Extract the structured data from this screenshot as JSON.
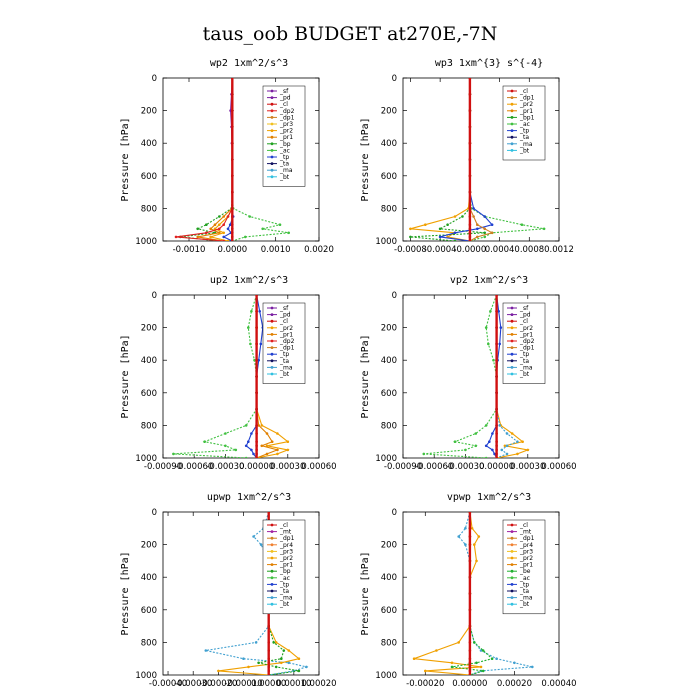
{
  "figure_title": "taus_oob  BUDGET at270E,-7N",
  "colors": {
    "sf": "#7a1fa2",
    "pd": "#7a1fa2",
    "cl": "#d01010",
    "dp2": "#e02020",
    "dp1": "#d08020",
    "pr3": "#f0c020",
    "pr2": "#f0a000",
    "pr1": "#e08000",
    "bp": "#20a020",
    "ac": "#40c040",
    "tp": "#2040d0",
    "ta": "#101060",
    "ma": "#40a0d0",
    "bt": "#30c0e0",
    "mt": "#a020a0",
    "pr4": "#f08030",
    "be": "#20b030"
  },
  "chart_data": [
    {
      "type": "line",
      "title": "wp2  1xm^2/s^3",
      "ylabel": "Pressure [hPa]",
      "xlim": [
        -0.0016,
        0.002
      ],
      "ylim": [
        1000,
        0
      ],
      "xticks": [
        -0.001,
        0.0,
        0.001,
        0.002
      ],
      "xtick_labels": [
        "-0.0010",
        "0.0000",
        "0.0010",
        "0.0020"
      ],
      "yticks": [
        0,
        200,
        400,
        600,
        800,
        1000
      ],
      "ytick_labels": [
        "0",
        "200",
        "400",
        "600",
        "800",
        "1000"
      ],
      "legend": [
        "_sf",
        "_pd",
        "_cl",
        "_dp2",
        "_dp1",
        "_pr3",
        "_pr2",
        "_pr1",
        "_bp",
        "_ac",
        "_tp",
        "_ta",
        "_ma",
        "_bt"
      ],
      "legend_location": "upper-right",
      "pressure": [
        0,
        100,
        200,
        300,
        400,
        500,
        600,
        700,
        800,
        850,
        900,
        925,
        950,
        975,
        1000
      ],
      "series": [
        {
          "name": "_ac",
          "key": "ac",
          "values": [
            0,
            0,
            0,
            0,
            0,
            0,
            0,
            0,
            2e-05,
            0.0004,
            0.0011,
            0.0007,
            0.0013,
            0.0003,
            0
          ]
        },
        {
          "name": "_bp",
          "key": "bp",
          "values": [
            0,
            0,
            0,
            0,
            0,
            0,
            0,
            0,
            -2e-05,
            -0.0003,
            -0.0006,
            -0.0008,
            -0.0004,
            -0.0012,
            -0.0003
          ]
        },
        {
          "name": "_pr1",
          "key": "pr1",
          "values": [
            0,
            0,
            0,
            0,
            0,
            0,
            0,
            0,
            -1e-05,
            -0.0002,
            -0.0004,
            -0.0005,
            -0.0003,
            -0.0008,
            -0.0002
          ]
        },
        {
          "name": "_pr2",
          "key": "pr2",
          "values": [
            0,
            0,
            0,
            0,
            0,
            0,
            0,
            0,
            0,
            -0.0001,
            -0.0003,
            -0.0004,
            -0.0002,
            -0.0005,
            -0.0001
          ]
        },
        {
          "name": "_dp2",
          "key": "dp2",
          "values": [
            0,
            0,
            0,
            0,
            0,
            0,
            0,
            0,
            0,
            -0.0001,
            -0.0002,
            -0.0003,
            -0.0006,
            -0.0013,
            -0.0002
          ]
        },
        {
          "name": "_tp",
          "key": "tp",
          "values": [
            0,
            0,
            0,
            0,
            0,
            0,
            0,
            0,
            0,
            2e-05,
            -5e-05,
            -0.0001,
            -3e-05,
            -0.0002,
            0
          ]
        },
        {
          "name": "_pd",
          "key": "pd",
          "values": [
            0,
            -2e-05,
            -4e-05,
            -2e-05,
            -1e-05,
            0,
            0,
            0,
            0,
            0,
            0,
            0,
            0,
            0,
            0
          ]
        },
        {
          "name": "_cl",
          "key": "cl",
          "values": [
            0,
            0,
            0,
            0,
            0,
            0,
            0,
            0,
            0,
            0,
            0,
            0,
            0,
            0,
            0
          ]
        }
      ]
    },
    {
      "type": "line",
      "title": "wp3  1xm^{3} s^{-4}",
      "ylabel": "Pressure [hPa]",
      "xlim": [
        -0.0009,
        0.0012
      ],
      "ylim": [
        1000,
        0
      ],
      "xticks": [
        -0.0008,
        -0.0004,
        0.0,
        0.0004,
        0.0008,
        0.0012
      ],
      "xtick_labels": [
        "-0.0008",
        "-0.0004",
        "-0.0000",
        "0.0004",
        "0.0008",
        "0.0012"
      ],
      "yticks": [
        0,
        200,
        400,
        600,
        800,
        1000
      ],
      "ytick_labels": [
        "0",
        "200",
        "400",
        "600",
        "800",
        "1000"
      ],
      "legend": [
        "_cl",
        "_dp1",
        "_pr2",
        "_pr1",
        "_bp1",
        "_ac",
        "_tp",
        "_ta",
        "_ma",
        "_bt"
      ],
      "legend_location": "upper-right",
      "pressure": [
        0,
        100,
        200,
        300,
        400,
        500,
        600,
        700,
        800,
        850,
        900,
        925,
        950,
        975,
        1000
      ],
      "series": [
        {
          "name": "_ac",
          "key": "ac",
          "values": [
            0,
            0,
            0,
            0,
            0,
            0,
            0,
            0,
            2e-05,
            0.0002,
            0.0007,
            0.001,
            0.0003,
            0.0002,
            0
          ]
        },
        {
          "name": "_pr2",
          "key": "pr2",
          "values": [
            0,
            0,
            0,
            0,
            0,
            0,
            0,
            0,
            -2e-05,
            -0.0002,
            -0.0006,
            -0.0008,
            -0.0002,
            -0.0003,
            0
          ]
        },
        {
          "name": "_bp1",
          "key": "bp",
          "values": [
            0,
            0,
            0,
            0,
            0,
            0,
            0,
            0,
            0,
            -0.0001,
            -0.0003,
            -0.0004,
            0.0002,
            -0.0008,
            -0.0002
          ]
        },
        {
          "name": "_tp",
          "key": "tp",
          "values": [
            0,
            0,
            0,
            0,
            0,
            0,
            0,
            0,
            5e-05,
            0.0002,
            0.0003,
            0.0001,
            -0.0002,
            -0.0004,
            0
          ]
        },
        {
          "name": "_dp1",
          "key": "dp1",
          "values": [
            0,
            0,
            0,
            0,
            0,
            0,
            0,
            0,
            0,
            5e-05,
            0.0001,
            0.0002,
            0.0003,
            0.0001,
            0
          ]
        },
        {
          "name": "_cl",
          "key": "cl",
          "values": [
            0,
            0,
            0,
            0,
            0,
            0,
            0,
            0,
            0,
            0,
            0,
            0,
            0,
            0,
            0
          ]
        }
      ]
    },
    {
      "type": "line",
      "title": "up2  1xm^2/s^3",
      "ylabel": "Pressure [hPa]",
      "xlim": [
        -0.0009,
        0.0006
      ],
      "ylim": [
        1000,
        0
      ],
      "xticks": [
        -0.0009,
        -0.0006,
        -0.0003,
        0.0,
        0.0003,
        0.0006
      ],
      "xtick_labels": [
        "-0.00090",
        "-0.00060",
        "-0.00030",
        "0.00000",
        "0.00030",
        "0.00060"
      ],
      "yticks": [
        0,
        200,
        400,
        600,
        800,
        1000
      ],
      "ytick_labels": [
        "0",
        "200",
        "400",
        "600",
        "800",
        "1000"
      ],
      "legend": [
        "_sf",
        "_pd",
        "_cl",
        "_pr2",
        "_pr1",
        "_dp2",
        "_dp1",
        "_tp",
        "_ta",
        "_ma",
        "_bt"
      ],
      "legend_location": "upper-right",
      "pressure": [
        0,
        100,
        200,
        300,
        400,
        500,
        600,
        700,
        800,
        850,
        900,
        925,
        950,
        975,
        1000
      ],
      "series": [
        {
          "name": "_dp2",
          "key": "ac",
          "values": [
            0,
            -5e-05,
            -8e-05,
            -6e-05,
            -2e-05,
            0,
            0,
            0,
            -0.0001,
            -0.0003,
            -0.0005,
            -0.0003,
            -0.0002,
            -0.0008,
            -0.0001
          ]
        },
        {
          "name": "_pr2",
          "key": "pr2",
          "values": [
            0,
            0,
            0,
            0,
            0,
            0,
            0,
            0,
            5e-05,
            0.0002,
            0.0003,
            0.0001,
            0.0003,
            0.0002,
            0
          ]
        },
        {
          "name": "_pr1",
          "key": "pr1",
          "values": [
            0,
            0,
            0,
            0,
            0,
            0,
            0,
            0,
            2e-05,
            0.0001,
            0.00015,
            5e-05,
            0.0002,
            0.0001,
            0
          ]
        },
        {
          "name": "_tp",
          "key": "tp",
          "values": [
            0,
            3e-05,
            6e-05,
            4e-05,
            2e-05,
            0,
            0,
            0,
            0,
            -5e-05,
            -8e-05,
            -0.0001,
            -5e-05,
            -3e-05,
            0
          ]
        },
        {
          "name": "_cl",
          "key": "cl",
          "values": [
            0,
            0,
            0,
            0,
            0,
            0,
            0,
            0,
            0,
            0,
            0,
            0,
            0,
            0,
            0
          ]
        }
      ]
    },
    {
      "type": "line",
      "title": "vp2  1xm^2/s^3",
      "ylabel": "Pressure [hPa]",
      "xlim": [
        -0.0009,
        0.0006
      ],
      "ylim": [
        1000,
        0
      ],
      "xticks": [
        -0.0009,
        -0.0006,
        -0.0003,
        0.0,
        0.0003,
        0.0006
      ],
      "xtick_labels": [
        "-0.00090",
        "-0.00060",
        "-0.00030",
        "0.00000",
        "0.00030",
        "0.00060"
      ],
      "yticks": [
        0,
        200,
        400,
        600,
        800,
        1000
      ],
      "ytick_labels": [
        "0",
        "200",
        "400",
        "600",
        "800",
        "1000"
      ],
      "legend": [
        "_sf",
        "_pd",
        "_cl",
        "_pr2",
        "_pr1",
        "_dp2",
        "_dp1",
        "_tp",
        "_ta",
        "_ma",
        "_bt"
      ],
      "legend_location": "upper-right",
      "pressure": [
        0,
        100,
        200,
        300,
        400,
        500,
        600,
        700,
        800,
        850,
        900,
        925,
        950,
        975,
        1000
      ],
      "series": [
        {
          "name": "_dp2",
          "key": "ac",
          "values": [
            0,
            -6e-05,
            -0.0001,
            -8e-05,
            -3e-05,
            0,
            0,
            0,
            -0.0001,
            -0.0002,
            -0.0004,
            -0.0002,
            -0.0003,
            -0.0007,
            -0.0001
          ]
        },
        {
          "name": "_pr2",
          "key": "pr2",
          "values": [
            0,
            0,
            0,
            0,
            0,
            0,
            0,
            0,
            4e-05,
            0.00015,
            0.00025,
            8e-05,
            0.0003,
            0.0002,
            0
          ]
        },
        {
          "name": "_ma",
          "key": "ma",
          "values": [
            0,
            0,
            0,
            0,
            0,
            0,
            0,
            0,
            3e-05,
            0.0001,
            0.0002,
            0.0001,
            5e-05,
            0.0001,
            0
          ]
        },
        {
          "name": "_tp",
          "key": "tp",
          "values": [
            0,
            2e-05,
            4e-05,
            3e-05,
            1e-05,
            0,
            0,
            0,
            0,
            -4e-05,
            -7e-05,
            -0.0001,
            -4e-05,
            -2e-05,
            0
          ]
        },
        {
          "name": "_cl",
          "key": "cl",
          "values": [
            0,
            0,
            0,
            0,
            0,
            0,
            0,
            0,
            0,
            0,
            0,
            0,
            0,
            0,
            0
          ]
        }
      ]
    },
    {
      "type": "line",
      "title": "upwp  1xm^2/s^3",
      "ylabel": "Pressure [hPa]",
      "xlim": [
        -0.00042,
        0.0002
      ],
      "ylim": [
        1000,
        0
      ],
      "xticks": [
        -0.0004,
        -0.0003,
        -0.0002,
        -0.0001,
        0.0,
        0.0001,
        0.0002
      ],
      "xtick_labels": [
        "-0.00040",
        "-0.00030",
        "-0.00020",
        "-0.00010",
        "0.00000",
        "0.00010",
        "0.00020"
      ],
      "yticks": [
        0,
        200,
        400,
        600,
        800,
        1000
      ],
      "ytick_labels": [
        "0",
        "200",
        "400",
        "600",
        "800",
        "1000"
      ],
      "legend": [
        "_cl",
        "_mt",
        "_dp1",
        "_pr4",
        "_pr3",
        "_pr2",
        "_pr1",
        "_bp",
        "_ac",
        "_tp",
        "_ta",
        "_ma",
        "_bt"
      ],
      "legend_location": "upper-right",
      "pressure": [
        0,
        100,
        150,
        200,
        300,
        400,
        500,
        600,
        700,
        800,
        850,
        900,
        925,
        950,
        975,
        1000
      ],
      "series": [
        {
          "name": "_ma",
          "key": "ma",
          "values": [
            0,
            -2e-05,
            -6e-05,
            -3e-05,
            0,
            0,
            0,
            0,
            0,
            -5e-05,
            -0.00025,
            -0.0001,
            8e-05,
            0.00015,
            0.0001,
            0
          ]
        },
        {
          "name": "_pr2",
          "key": "pr2",
          "values": [
            0,
            0,
            0,
            0,
            0,
            0,
            0,
            0,
            0,
            3e-05,
            8e-05,
            0.00012,
            5e-05,
            -8e-05,
            -0.0002,
            0
          ]
        },
        {
          "name": "_bp",
          "key": "bp",
          "values": [
            0,
            0,
            0,
            0,
            0,
            0,
            0,
            0,
            0,
            2e-05,
            6e-05,
            5e-05,
            -4e-05,
            3e-05,
            0.00012,
            0
          ]
        },
        {
          "name": "_cl",
          "key": "cl",
          "values": [
            0,
            0,
            0,
            0,
            0,
            0,
            0,
            0,
            0,
            0,
            0,
            0,
            0,
            0,
            0,
            0
          ]
        }
      ]
    },
    {
      "type": "line",
      "title": "vpwp  1xm^2/s^3",
      "ylabel": "Pressure [hPa]",
      "xlim": [
        -0.0003,
        0.0004
      ],
      "ylim": [
        1000,
        0
      ],
      "xticks": [
        -0.0002,
        0.0,
        0.0002,
        0.0004
      ],
      "xtick_labels": [
        "-0.00020",
        "0.00000",
        "0.00020",
        "0.00040"
      ],
      "yticks": [
        0,
        200,
        400,
        600,
        800,
        1000
      ],
      "ytick_labels": [
        "0",
        "200",
        "400",
        "600",
        "800",
        "1000"
      ],
      "legend": [
        "_cl",
        "_mt",
        "_dp1",
        "_pr4",
        "_pr3",
        "_pr2",
        "_pr1",
        "_be",
        "_ac",
        "_tp",
        "_ta",
        "_ma",
        "_bt"
      ],
      "legend_location": "upper-right",
      "pressure": [
        0,
        100,
        150,
        200,
        300,
        400,
        500,
        600,
        700,
        800,
        850,
        900,
        925,
        950,
        975,
        1000
      ],
      "series": [
        {
          "name": "_ma",
          "key": "ma",
          "values": [
            0,
            -2e-05,
            -5e-05,
            -2e-05,
            0,
            0,
            0,
            0,
            0,
            2e-05,
            5e-05,
            0.00012,
            0.0002,
            0.00028,
            5e-05,
            0
          ]
        },
        {
          "name": "_pr2",
          "key": "pr2",
          "values": [
            0,
            1e-05,
            4e-05,
            2e-05,
            3e-05,
            0,
            0,
            0,
            0,
            -5e-05,
            -0.00015,
            -0.00025,
            -8e-05,
            5e-05,
            -0.0002,
            0
          ]
        },
        {
          "name": "_be",
          "key": "be",
          "values": [
            0,
            0,
            0,
            0,
            0,
            0,
            0,
            0,
            0,
            2e-05,
            6e-05,
            0.0001,
            3e-05,
            -8e-05,
            6e-05,
            0
          ]
        },
        {
          "name": "_cl",
          "key": "cl",
          "values": [
            0,
            0,
            0,
            0,
            0,
            0,
            0,
            0,
            0,
            0,
            0,
            0,
            0,
            0,
            0,
            0
          ]
        }
      ]
    }
  ]
}
